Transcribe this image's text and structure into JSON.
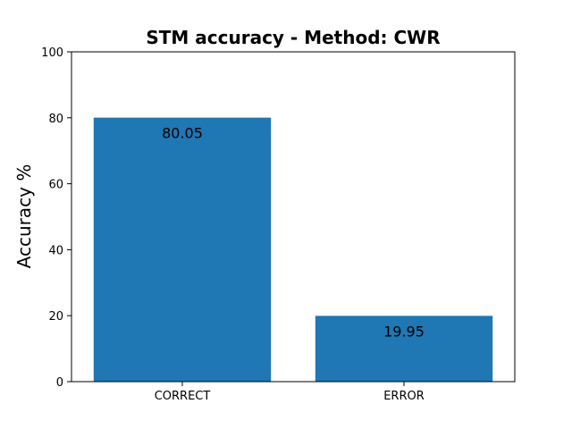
{
  "chart_data": {
    "type": "bar",
    "title": "STM accuracy - Method: CWR",
    "xlabel": "",
    "ylabel": "Accuracy %",
    "categories": [
      "CORRECT",
      "ERROR"
    ],
    "values": [
      80.05,
      19.95
    ],
    "data_labels": [
      "80.05",
      "19.95"
    ],
    "ylim": [
      0,
      100
    ],
    "yticks": [
      0,
      20,
      40,
      60,
      80,
      100
    ],
    "ytick_labels": [
      "0",
      "20",
      "40",
      "60",
      "80",
      "100"
    ],
    "bar_color": "#1f77b4",
    "grid": false,
    "legend": "none"
  }
}
